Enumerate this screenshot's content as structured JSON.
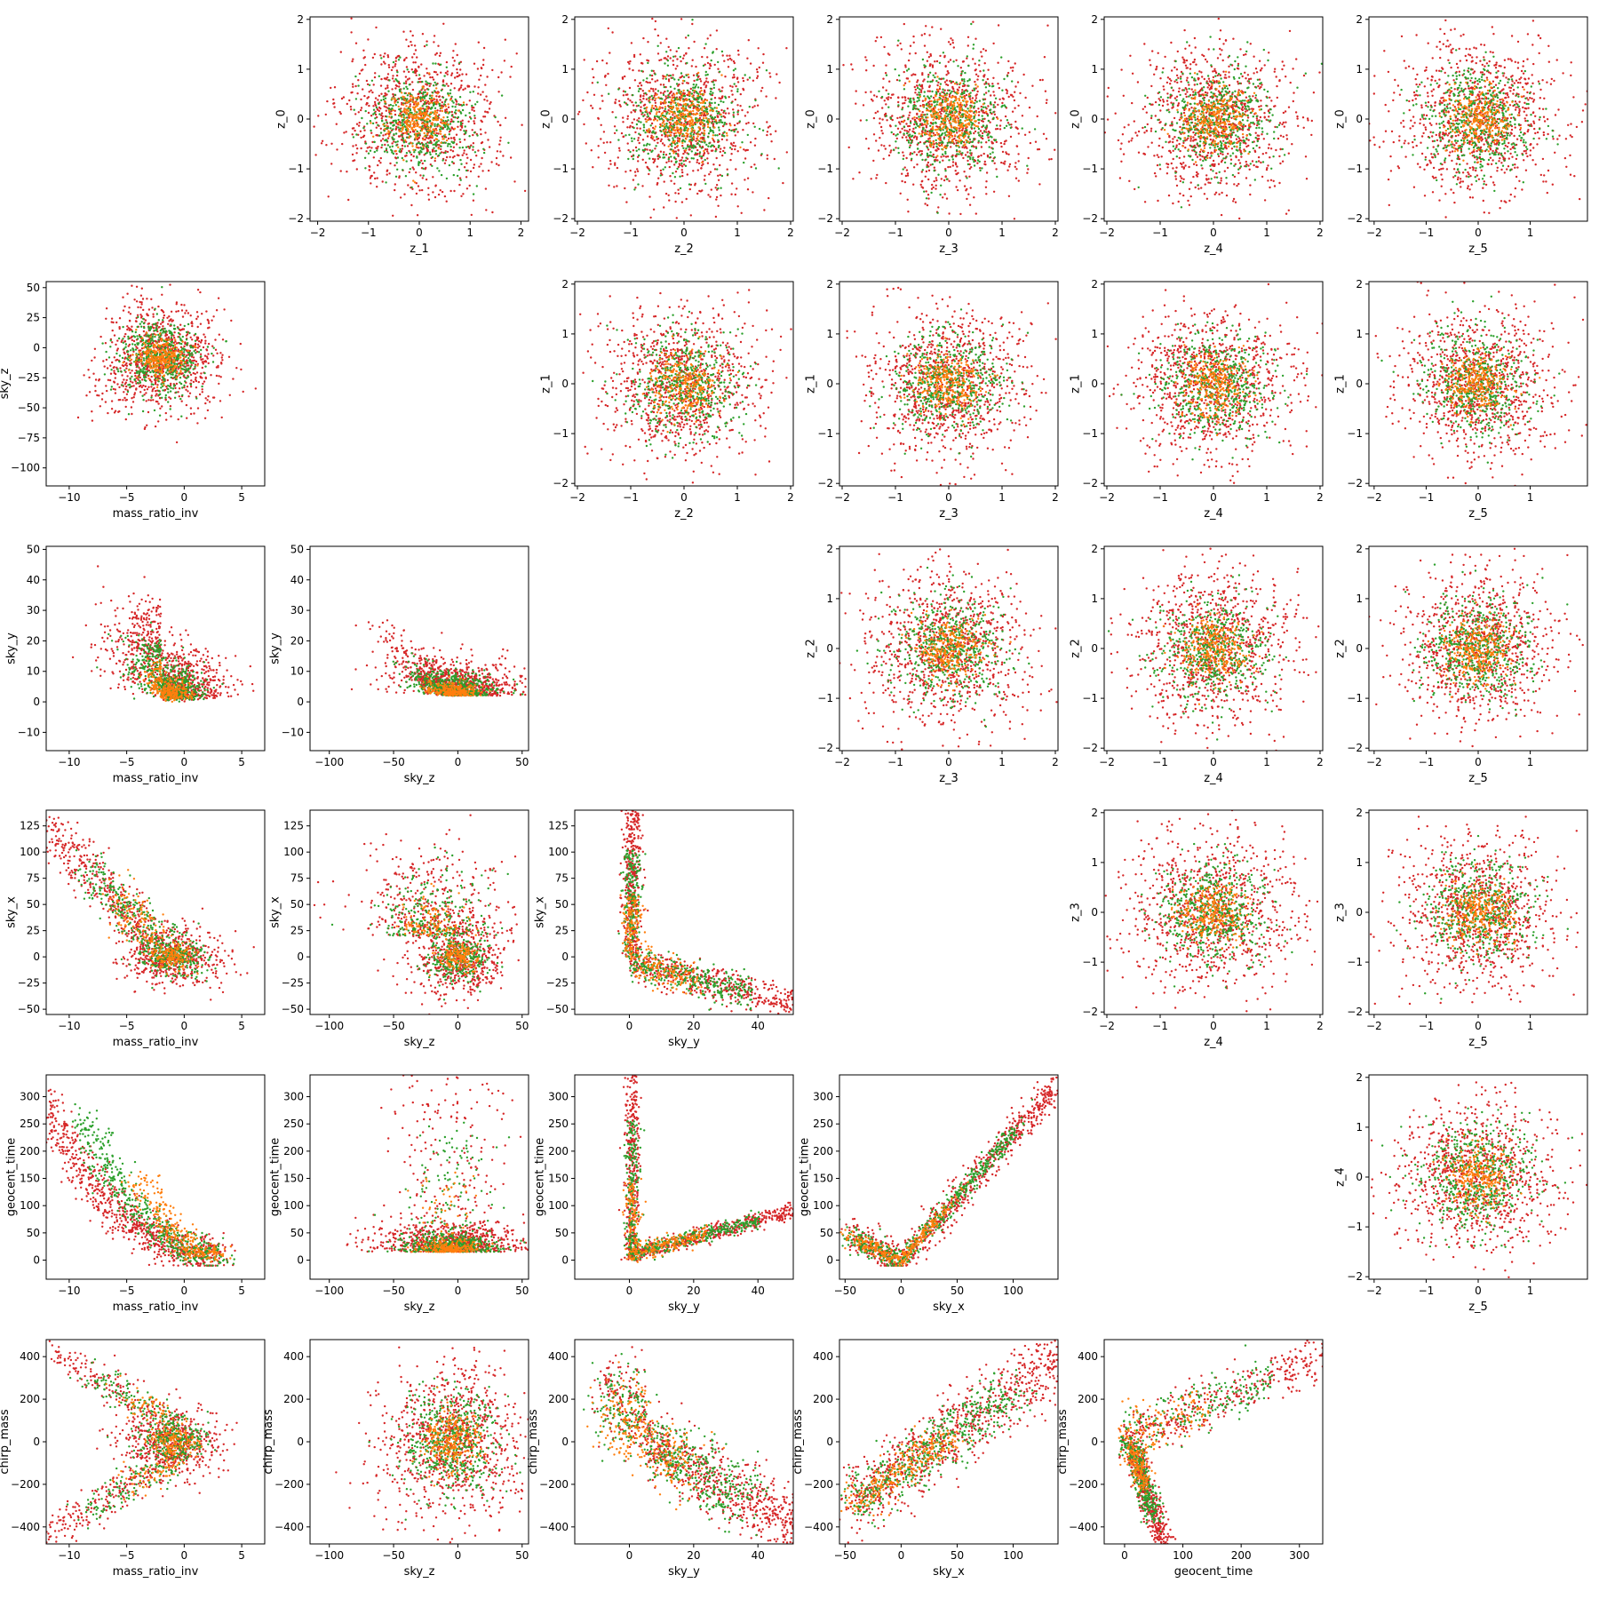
{
  "colors": {
    "axes": "#000000",
    "series": [
      "#d62728",
      "#2ca02c",
      "#ff7f0e"
    ]
  },
  "chart_data": [
    {
      "type": "scatter",
      "row": 0,
      "col": 1,
      "xlabel": "z_1",
      "ylabel": "z_0",
      "xlim": [
        -2.15,
        2.15
      ],
      "ylim": [
        -2.05,
        2.05
      ],
      "xticks": [
        -2,
        -1,
        0,
        1,
        2
      ],
      "yticks": [
        -2,
        -1,
        0,
        1,
        2
      ],
      "pattern": "gauss"
    },
    {
      "type": "scatter",
      "row": 0,
      "col": 2,
      "xlabel": "z_2",
      "ylabel": "z_0",
      "xlim": [
        -2.05,
        2.05
      ],
      "ylim": [
        -2.05,
        2.05
      ],
      "xticks": [
        -2,
        -1,
        0,
        1,
        2
      ],
      "yticks": [
        -2,
        -1,
        0,
        1,
        2
      ],
      "pattern": "gauss"
    },
    {
      "type": "scatter",
      "row": 0,
      "col": 3,
      "xlabel": "z_3",
      "ylabel": "z_0",
      "xlim": [
        -2.05,
        2.05
      ],
      "ylim": [
        -2.05,
        2.05
      ],
      "xticks": [
        -2,
        -1,
        0,
        1,
        2
      ],
      "yticks": [
        -2,
        -1,
        0,
        1,
        2
      ],
      "pattern": "gauss"
    },
    {
      "type": "scatter",
      "row": 0,
      "col": 4,
      "xlabel": "z_4",
      "ylabel": "z_0",
      "xlim": [
        -2.05,
        2.05
      ],
      "ylim": [
        -2.05,
        2.05
      ],
      "xticks": [
        -2,
        -1,
        0,
        1,
        2
      ],
      "yticks": [
        -2,
        -1,
        0,
        1,
        2
      ],
      "pattern": "gauss"
    },
    {
      "type": "scatter",
      "row": 0,
      "col": 5,
      "xlabel": "z_5",
      "ylabel": "z_0",
      "xlim": [
        -2.1,
        2.1
      ],
      "ylim": [
        -2.05,
        2.05
      ],
      "xticks": [
        -2,
        -1,
        0,
        1
      ],
      "yticks": [
        -2,
        -1,
        0,
        1,
        2
      ],
      "pattern": "gauss"
    },
    {
      "type": "scatter",
      "row": 1,
      "col": 0,
      "xlabel": "mass_ratio_inv",
      "ylabel": "sky_z",
      "xlim": [
        -12,
        7
      ],
      "ylim": [
        -115,
        55
      ],
      "xticks": [
        -10,
        -5,
        0,
        5
      ],
      "yticks": [
        -100,
        -75,
        -50,
        -25,
        0,
        25,
        50
      ],
      "pattern": "blob_skyz"
    },
    {
      "type": "scatter",
      "row": 1,
      "col": 2,
      "xlabel": "z_2",
      "ylabel": "z_1",
      "xlim": [
        -2.05,
        2.05
      ],
      "ylim": [
        -2.05,
        2.05
      ],
      "xticks": [
        -2,
        -1,
        0,
        1,
        2
      ],
      "yticks": [
        -2,
        -1,
        0,
        1,
        2
      ],
      "pattern": "gauss"
    },
    {
      "type": "scatter",
      "row": 1,
      "col": 3,
      "xlabel": "z_3",
      "ylabel": "z_1",
      "xlim": [
        -2.05,
        2.05
      ],
      "ylim": [
        -2.05,
        2.05
      ],
      "xticks": [
        -2,
        -1,
        0,
        1,
        2
      ],
      "yticks": [
        -2,
        -1,
        0,
        1,
        2
      ],
      "pattern": "gauss"
    },
    {
      "type": "scatter",
      "row": 1,
      "col": 4,
      "xlabel": "z_4",
      "ylabel": "z_1",
      "xlim": [
        -2.05,
        2.05
      ],
      "ylim": [
        -2.05,
        2.05
      ],
      "xticks": [
        -2,
        -1,
        0,
        1,
        2
      ],
      "yticks": [
        -2,
        -1,
        0,
        1,
        2
      ],
      "pattern": "gauss"
    },
    {
      "type": "scatter",
      "row": 1,
      "col": 5,
      "xlabel": "z_5",
      "ylabel": "z_1",
      "xlim": [
        -2.1,
        2.1
      ],
      "ylim": [
        -2.05,
        2.05
      ],
      "xticks": [
        -2,
        -1,
        0,
        1
      ],
      "yticks": [
        -2,
        -1,
        0,
        1,
        2
      ],
      "pattern": "gauss"
    },
    {
      "type": "scatter",
      "row": 2,
      "col": 0,
      "xlabel": "mass_ratio_inv",
      "ylabel": "sky_y",
      "xlim": [
        -12,
        7
      ],
      "ylim": [
        -16,
        51
      ],
      "xticks": [
        -10,
        -5,
        0,
        5
      ],
      "yticks": [
        -10,
        0,
        10,
        20,
        30,
        40,
        50
      ],
      "pattern": "mr_skyy"
    },
    {
      "type": "scatter",
      "row": 2,
      "col": 1,
      "xlabel": "sky_z",
      "ylabel": "sky_y",
      "xlim": [
        -115,
        55
      ],
      "ylim": [
        -16,
        51
      ],
      "xticks": [
        -100,
        -50,
        0,
        50
      ],
      "yticks": [
        -10,
        0,
        10,
        20,
        30,
        40,
        50
      ],
      "pattern": "skyz_skyy"
    },
    {
      "type": "scatter",
      "row": 2,
      "col": 3,
      "xlabel": "z_3",
      "ylabel": "z_2",
      "xlim": [
        -2.05,
        2.05
      ],
      "ylim": [
        -2.05,
        2.05
      ],
      "xticks": [
        -2,
        -1,
        0,
        1,
        2
      ],
      "yticks": [
        -2,
        -1,
        0,
        1,
        2
      ],
      "pattern": "gauss"
    },
    {
      "type": "scatter",
      "row": 2,
      "col": 4,
      "xlabel": "z_4",
      "ylabel": "z_2",
      "xlim": [
        -2.05,
        2.05
      ],
      "ylim": [
        -2.05,
        2.05
      ],
      "xticks": [
        -2,
        -1,
        0,
        1,
        2
      ],
      "yticks": [
        -2,
        -1,
        0,
        1,
        2
      ],
      "pattern": "gauss"
    },
    {
      "type": "scatter",
      "row": 2,
      "col": 5,
      "xlabel": "z_5",
      "ylabel": "z_2",
      "xlim": [
        -2.1,
        2.1
      ],
      "ylim": [
        -2.05,
        2.05
      ],
      "xticks": [
        -2,
        -1,
        0,
        1
      ],
      "yticks": [
        -2,
        -1,
        0,
        1,
        2
      ],
      "pattern": "gauss"
    },
    {
      "type": "scatter",
      "row": 3,
      "col": 0,
      "xlabel": "mass_ratio_inv",
      "ylabel": "sky_x",
      "xlim": [
        -12,
        7
      ],
      "ylim": [
        -55,
        140
      ],
      "xticks": [
        -10,
        -5,
        0,
        5
      ],
      "yticks": [
        -50,
        -25,
        0,
        25,
        50,
        75,
        100,
        125
      ],
      "pattern": "mr_skyx"
    },
    {
      "type": "scatter",
      "row": 3,
      "col": 1,
      "xlabel": "sky_z",
      "ylabel": "sky_x",
      "xlim": [
        -115,
        55
      ],
      "ylim": [
        -55,
        140
      ],
      "xticks": [
        -100,
        -50,
        0,
        50
      ],
      "yticks": [
        -50,
        -25,
        0,
        25,
        50,
        75,
        100,
        125
      ],
      "pattern": "skyz_skyx"
    },
    {
      "type": "scatter",
      "row": 3,
      "col": 2,
      "xlabel": "sky_y",
      "ylabel": "sky_x",
      "xlim": [
        -17,
        51
      ],
      "ylim": [
        -55,
        140
      ],
      "xticks": [
        0,
        20,
        40
      ],
      "yticks": [
        -50,
        -25,
        0,
        25,
        50,
        75,
        100,
        125
      ],
      "pattern": "skyy_skyx"
    },
    {
      "type": "scatter",
      "row": 3,
      "col": 4,
      "xlabel": "z_4",
      "ylabel": "z_3",
      "xlim": [
        -2.05,
        2.05
      ],
      "ylim": [
        -2.05,
        2.05
      ],
      "xticks": [
        -2,
        -1,
        0,
        1,
        2
      ],
      "yticks": [
        -2,
        -1,
        0,
        1,
        2
      ],
      "pattern": "gauss"
    },
    {
      "type": "scatter",
      "row": 3,
      "col": 5,
      "xlabel": "z_5",
      "ylabel": "z_3",
      "xlim": [
        -2.1,
        2.1
      ],
      "ylim": [
        -2.05,
        2.05
      ],
      "xticks": [
        -2,
        -1,
        0,
        1
      ],
      "yticks": [
        -2,
        -1,
        0,
        1,
        2
      ],
      "pattern": "gauss"
    },
    {
      "type": "scatter",
      "row": 4,
      "col": 0,
      "xlabel": "mass_ratio_inv",
      "ylabel": "geocent_time",
      "xlim": [
        -12,
        7
      ],
      "ylim": [
        -35,
        340
      ],
      "xticks": [
        -10,
        -5,
        0,
        5
      ],
      "yticks": [
        0,
        50,
        100,
        150,
        200,
        250,
        300
      ],
      "pattern": "mr_gt"
    },
    {
      "type": "scatter",
      "row": 4,
      "col": 1,
      "xlabel": "sky_z",
      "ylabel": "geocent_time",
      "xlim": [
        -115,
        55
      ],
      "ylim": [
        -35,
        340
      ],
      "xticks": [
        -100,
        -50,
        0,
        50
      ],
      "yticks": [
        0,
        50,
        100,
        150,
        200,
        250,
        300
      ],
      "pattern": "skyz_gt"
    },
    {
      "type": "scatter",
      "row": 4,
      "col": 2,
      "xlabel": "sky_y",
      "ylabel": "geocent_time",
      "xlim": [
        -17,
        51
      ],
      "ylim": [
        -35,
        340
      ],
      "xticks": [
        0,
        20,
        40
      ],
      "yticks": [
        0,
        50,
        100,
        150,
        200,
        250,
        300
      ],
      "pattern": "skyy_gt"
    },
    {
      "type": "scatter",
      "row": 4,
      "col": 3,
      "xlabel": "sky_x",
      "ylabel": "geocent_time",
      "xlim": [
        -55,
        140
      ],
      "ylim": [
        -35,
        340
      ],
      "xticks": [
        -50,
        0,
        50,
        100
      ],
      "yticks": [
        0,
        50,
        100,
        150,
        200,
        250,
        300
      ],
      "pattern": "skyx_gt"
    },
    {
      "type": "scatter",
      "row": 4,
      "col": 5,
      "xlabel": "z_5",
      "ylabel": "z_4",
      "xlim": [
        -2.1,
        2.1
      ],
      "ylim": [
        -2.05,
        2.05
      ],
      "xticks": [
        -2,
        -1,
        0,
        1
      ],
      "yticks": [
        -2,
        -1,
        0,
        1,
        2
      ],
      "pattern": "gauss"
    },
    {
      "type": "scatter",
      "row": 5,
      "col": 0,
      "xlabel": "mass_ratio_inv",
      "ylabel": "chirp_mass",
      "xlim": [
        -12,
        7
      ],
      "ylim": [
        -480,
        480
      ],
      "xticks": [
        -10,
        -5,
        0,
        5
      ],
      "yticks": [
        -400,
        -200,
        0,
        200,
        400
      ],
      "pattern": "mr_cm"
    },
    {
      "type": "scatter",
      "row": 5,
      "col": 1,
      "xlabel": "sky_z",
      "ylabel": "chirp_mass",
      "xlim": [
        -115,
        55
      ],
      "ylim": [
        -480,
        480
      ],
      "xticks": [
        -100,
        -50,
        0,
        50
      ],
      "yticks": [
        -400,
        -200,
        0,
        200,
        400
      ],
      "pattern": "skyz_cm"
    },
    {
      "type": "scatter",
      "row": 5,
      "col": 2,
      "xlabel": "sky_y",
      "ylabel": "chirp_mass",
      "xlim": [
        -17,
        51
      ],
      "ylim": [
        -480,
        480
      ],
      "xticks": [
        0,
        20,
        40
      ],
      "yticks": [
        -400,
        -200,
        0,
        200,
        400
      ],
      "pattern": "skyy_cm"
    },
    {
      "type": "scatter",
      "row": 5,
      "col": 3,
      "xlabel": "sky_x",
      "ylabel": "chirp_mass",
      "xlim": [
        -55,
        140
      ],
      "ylim": [
        -480,
        480
      ],
      "xticks": [
        -50,
        0,
        50,
        100
      ],
      "yticks": [
        -400,
        -200,
        0,
        200,
        400
      ],
      "pattern": "skyx_cm"
    },
    {
      "type": "scatter",
      "row": 5,
      "col": 4,
      "xlabel": "geocent_time",
      "ylabel": "chirp_mass",
      "xlim": [
        -35,
        340
      ],
      "ylim": [
        -480,
        480
      ],
      "xticks": [
        0,
        100,
        200,
        300
      ],
      "yticks": [
        -400,
        -200,
        0,
        200,
        400
      ],
      "pattern": "gt_cm"
    }
  ]
}
